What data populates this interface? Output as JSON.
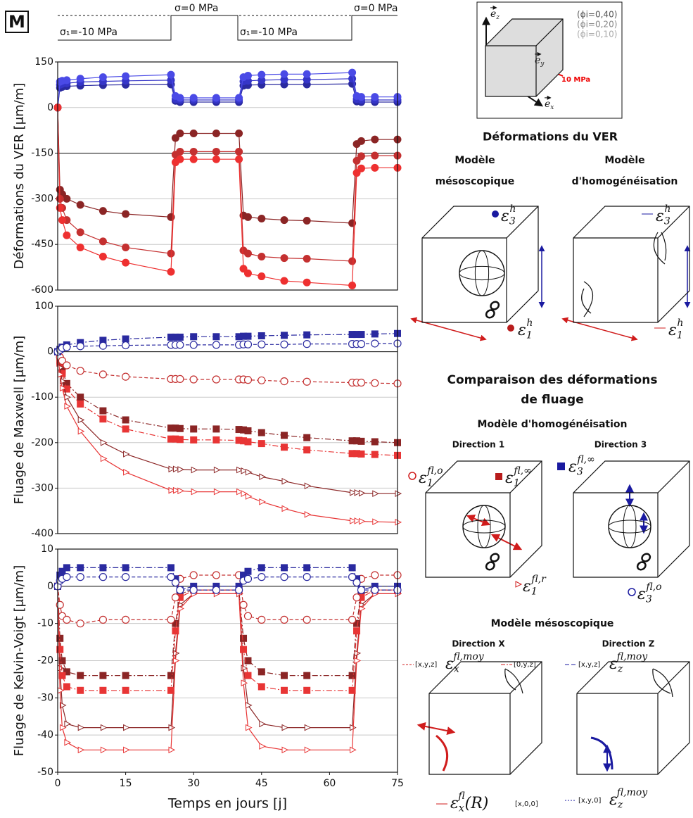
{
  "panel_label": "M",
  "loading": {
    "labels": [
      "σ₁=-10 MPa",
      "σ=0 MPa",
      "σ₁=-10 MPa",
      "σ=0 MPa"
    ]
  },
  "chart_data": [
    {
      "type": "line",
      "ylabel": "Déformations du VER [μm/m]",
      "x": [
        0,
        0.5,
        1,
        2,
        5,
        10,
        15,
        25,
        26,
        27,
        30,
        35,
        40,
        41,
        42,
        45,
        50,
        55,
        65,
        66,
        67,
        70,
        75
      ],
      "xlim": [
        0,
        75
      ],
      "ylim": [
        -600,
        150
      ],
      "yticks": [
        -600,
        -450,
        -300,
        -150,
        0,
        150
      ],
      "grid": true,
      "reference_line": -150,
      "series": [
        {
          "color": "#2a2aa0",
          "marker": "circle",
          "line": "solid",
          "values": [
            0,
            65,
            68,
            70,
            72,
            74,
            75,
            76,
            22,
            18,
            18,
            18,
            18,
            72,
            74,
            75,
            76,
            76,
            78,
            20,
            18,
            18,
            18
          ]
        },
        {
          "color": "#3535c8",
          "marker": "circle",
          "line": "solid",
          "values": [
            0,
            75,
            78,
            80,
            84,
            86,
            88,
            90,
            28,
            25,
            25,
            25,
            25,
            86,
            88,
            90,
            92,
            92,
            95,
            28,
            25,
            25,
            25
          ]
        },
        {
          "color": "#4a4ae6",
          "marker": "circle",
          "line": "solid",
          "values": [
            0,
            85,
            88,
            90,
            95,
            100,
            103,
            108,
            38,
            32,
            32,
            32,
            32,
            100,
            105,
            108,
            110,
            110,
            115,
            38,
            35,
            35,
            35
          ]
        },
        {
          "color": "#8b2525",
          "marker": "circle",
          "line": "solid",
          "values": [
            0,
            -270,
            -285,
            -300,
            -320,
            -340,
            -350,
            -360,
            -100,
            -85,
            -85,
            -85,
            -85,
            -355,
            -360,
            -365,
            -370,
            -372,
            -380,
            -120,
            -110,
            -105,
            -105
          ]
        },
        {
          "color": "#c43030",
          "marker": "circle",
          "line": "solid",
          "values": [
            0,
            -300,
            -330,
            -370,
            -410,
            -440,
            -460,
            -480,
            -155,
            -145,
            -145,
            -145,
            -145,
            -470,
            -480,
            -490,
            -495,
            -497,
            -505,
            -175,
            -160,
            -158,
            -158
          ]
        },
        {
          "color": "#ee3030",
          "marker": "circle",
          "line": "solid",
          "values": [
            0,
            -330,
            -370,
            -420,
            -460,
            -490,
            -510,
            -540,
            -180,
            -170,
            -170,
            -170,
            -170,
            -530,
            -545,
            -555,
            -570,
            -575,
            -585,
            -215,
            -200,
            -198,
            -198
          ]
        }
      ]
    },
    {
      "type": "line",
      "ylabel": "Fluage de Maxwell [μm/m]",
      "x": [
        0,
        0.5,
        1,
        2,
        5,
        10,
        15,
        25,
        26,
        27,
        30,
        35,
        40,
        41,
        42,
        45,
        50,
        55,
        65,
        66,
        67,
        70,
        75
      ],
      "xlim": [
        0,
        75
      ],
      "ylim": [
        -400,
        100
      ],
      "yticks": [
        -400,
        -300,
        -200,
        -100,
        0,
        100
      ],
      "grid": true,
      "reference_line": 0,
      "series": [
        {
          "color": "#8b2525",
          "marker": "square",
          "line": "dashdot",
          "values": [
            0,
            -20,
            -40,
            -70,
            -100,
            -130,
            -150,
            -168,
            -168,
            -169,
            -170,
            -170,
            -171,
            -172,
            -174,
            -178,
            -184,
            -189,
            -196,
            -196,
            -197,
            -198,
            -200
          ]
        },
        {
          "color": "#e83535",
          "marker": "square",
          "line": "dashdot",
          "values": [
            0,
            -25,
            -48,
            -82,
            -115,
            -148,
            -170,
            -192,
            -192,
            -193,
            -194,
            -194,
            -195,
            -196,
            -198,
            -202,
            -210,
            -216,
            -224,
            -224,
            -225,
            -226,
            -228
          ]
        },
        {
          "color": "#8b2525",
          "marker": "triangle-open",
          "line": "solid",
          "values": [
            0,
            -35,
            -65,
            -100,
            -150,
            -200,
            -225,
            -258,
            -258,
            -259,
            -260,
            -260,
            -260,
            -262,
            -265,
            -275,
            -285,
            -295,
            -310,
            -310,
            -311,
            -312,
            -312
          ]
        },
        {
          "color": "#e83535",
          "marker": "triangle-open",
          "line": "solid",
          "values": [
            0,
            -50,
            -80,
            -120,
            -175,
            -235,
            -265,
            -305,
            -305,
            -306,
            -308,
            -308,
            -308,
            -312,
            -318,
            -330,
            -345,
            -358,
            -372,
            -372,
            -373,
            -374,
            -375
          ]
        },
        {
          "color": "#c43030",
          "marker": "circle-open",
          "line": "dash",
          "values": [
            0,
            -12,
            -20,
            -30,
            -42,
            -50,
            -55,
            -60,
            -60,
            -60,
            -61,
            -61,
            -61,
            -61,
            -62,
            -63,
            -65,
            -66,
            -68,
            -68,
            -68,
            -69,
            -70
          ]
        },
        {
          "color": "#2a2aa0",
          "marker": "square",
          "line": "dashdot",
          "values": [
            0,
            5,
            10,
            15,
            20,
            25,
            28,
            32,
            32,
            32,
            33,
            33,
            33,
            34,
            34,
            35,
            36,
            37,
            38,
            38,
            38,
            39,
            40
          ]
        },
        {
          "color": "#2a2aa0",
          "marker": "circle-open",
          "line": "dash",
          "values": [
            0,
            4,
            8,
            10,
            12,
            13,
            14,
            15,
            15,
            15,
            15,
            15,
            15,
            16,
            16,
            16,
            16,
            17,
            17,
            17,
            17,
            18,
            18
          ]
        }
      ]
    },
    {
      "type": "line",
      "ylabel": "Fluage de Kelvin-Voigt [μm/m]",
      "xlabel": "Temps en jours [j]",
      "x": [
        0,
        0.5,
        1,
        2,
        5,
        10,
        15,
        25,
        26,
        27,
        30,
        35,
        40,
        41,
        42,
        45,
        50,
        55,
        65,
        66,
        67,
        70,
        75
      ],
      "xlim": [
        0,
        75
      ],
      "xticks": [
        0,
        15,
        30,
        45,
        60,
        75
      ],
      "ylim": [
        -50,
        10
      ],
      "yticks": [
        -50,
        -40,
        -30,
        -20,
        -10,
        0,
        10
      ],
      "grid": true,
      "reference_line": 0,
      "series": [
        {
          "color": "#8b2525",
          "marker": "triangle-open",
          "line": "solid",
          "values": [
            0,
            -22,
            -32,
            -37,
            -38,
            -38,
            -38,
            -38,
            -18,
            -5,
            -2,
            -2,
            -2,
            -22,
            -32,
            -37,
            -38,
            -38,
            -38,
            -18,
            -5,
            -2,
            -2
          ]
        },
        {
          "color": "#e83535",
          "marker": "triangle-open",
          "line": "solid",
          "values": [
            0,
            -28,
            -38,
            -42,
            -44,
            -44,
            -44,
            -44,
            -20,
            -6,
            -2,
            -2,
            -2,
            -26,
            -38,
            -43,
            -44,
            -44,
            -44,
            -20,
            -6,
            -2,
            -2
          ]
        },
        {
          "color": "#8b2525",
          "marker": "square",
          "line": "dashdot",
          "values": [
            0,
            -14,
            -20,
            -23,
            -24,
            -24,
            -24,
            -24,
            -10,
            -2,
            -1,
            -1,
            -1,
            -14,
            -20,
            -23,
            -24,
            -24,
            -24,
            -10,
            -2,
            -1,
            -1
          ]
        },
        {
          "color": "#e83535",
          "marker": "square",
          "line": "dashdot",
          "values": [
            0,
            -17,
            -24,
            -27,
            -28,
            -28,
            -28,
            -28,
            -12,
            -3,
            -1,
            -1,
            -1,
            -17,
            -24,
            -27,
            -28,
            -28,
            -28,
            -12,
            -3,
            -1,
            -1
          ]
        },
        {
          "color": "#c43030",
          "marker": "circle-open",
          "line": "dash",
          "values": [
            0,
            -5,
            -8,
            -9,
            -10,
            -9,
            -9,
            -9,
            -3,
            2,
            3,
            3,
            3,
            -5,
            -8,
            -9,
            -9,
            -9,
            -9,
            -3,
            2,
            3,
            3
          ]
        },
        {
          "color": "#2a2aa0",
          "marker": "square",
          "line": "dashdot",
          "values": [
            0,
            3,
            4,
            5,
            5,
            5,
            5,
            5,
            2,
            -1,
            0,
            0,
            0,
            3,
            4,
            5,
            5,
            5,
            5,
            2,
            -1,
            0,
            0
          ]
        },
        {
          "color": "#2a2aa0",
          "marker": "circle-open",
          "line": "dash",
          "values": [
            0,
            1.5,
            2,
            2.5,
            2.5,
            2.5,
            2.5,
            2.5,
            1,
            -1,
            -1,
            -1,
            -1,
            1.5,
            2,
            2.5,
            2.5,
            2.5,
            2.5,
            1,
            -1,
            -1,
            -1
          ]
        }
      ]
    }
  ],
  "diagram": {
    "box_labels": [
      "(ϕi=0,40)",
      "(ϕi=0,20)",
      "(ϕi=0,10)"
    ],
    "load": "10 MPa",
    "axes": [
      {
        "base": "e",
        "sub": "z"
      },
      {
        "base": "e",
        "sub": "y"
      },
      {
        "base": "e",
        "sub": "x"
      }
    ],
    "title1": "Déformations du VER",
    "mesoscopic": [
      "Modèle",
      "mésoscopique"
    ],
    "homogenization": [
      "Modèle",
      "d'homogénéisation"
    ],
    "strain_labels": [
      {
        "base": "ε",
        "sub": "3",
        "sup": "h"
      },
      {
        "base": "ε",
        "sub": "1",
        "sup": "h"
      },
      {
        "base": "ε",
        "sub": "3",
        "sup": "h"
      },
      {
        "base": "ε",
        "sub": "1",
        "sup": "h"
      }
    ],
    "title2": [
      "Comparaison des déformations",
      "de fluage"
    ],
    "sub1": "Modèle d'homogénéisation",
    "directions1": [
      "Direction 1",
      "Direction 3"
    ],
    "creep_labels": [
      {
        "base": "ε",
        "sub": "1",
        "sup": "fl,o"
      },
      {
        "base": "ε",
        "sub": "1",
        "sup": "fl,∞"
      },
      {
        "base": "ε",
        "sub": "3",
        "sup": "fl,∞"
      },
      {
        "base": "ε",
        "sub": "1",
        "sup": "fl,r"
      },
      {
        "base": "ε",
        "sub": "3",
        "sup": "fl,o"
      }
    ],
    "sub2": "Modèle mésoscopique",
    "directions2": [
      "Direction X",
      "Direction Z"
    ],
    "meso_labels": [
      {
        "base": "ε",
        "sub": "x",
        "sup": "fl,moy"
      },
      {
        "base": "ε",
        "sub": "z",
        "sup": "fl,moy"
      },
      {
        "base": "ε",
        "sub": "x",
        "sup": "fl",
        "suffix": "(R)"
      },
      {
        "base": "ε",
        "sub": "z",
        "sup": "fl,moy"
      }
    ],
    "point_labels": [
      "[x,y,z]",
      "[0,y,z]",
      "[x,y,z]",
      "[x,0,0]",
      "[x,y,0]"
    ]
  }
}
